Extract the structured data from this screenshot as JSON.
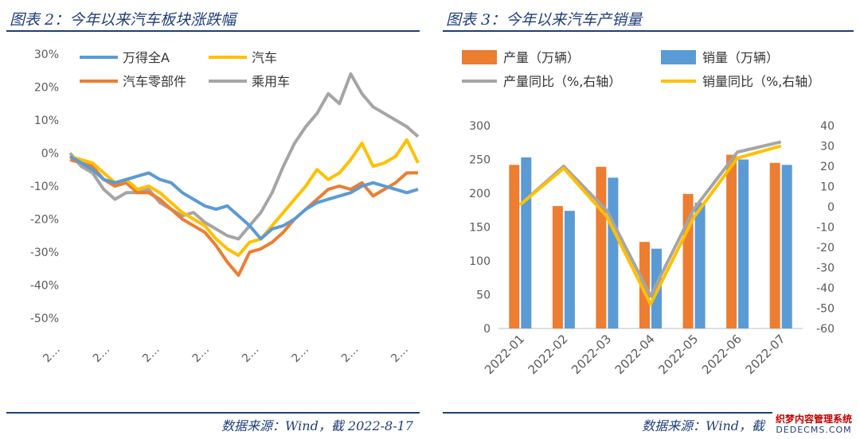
{
  "left": {
    "title": "图表 2：今年以来汽车板块涨跌幅",
    "source": "数据来源：Wind，截 2022-8-17"
  },
  "right": {
    "title": "图表 3：今年以来汽车产销量",
    "source": "数据来源：Wind，截"
  },
  "watermark": {
    "line1": "织梦内容管理系统",
    "line2": "DEDECMS.COM"
  },
  "chart_data": [
    {
      "type": "line",
      "ylim": [
        -50,
        30
      ],
      "yticks": [
        "30%",
        "20%",
        "10%",
        "0%",
        "-10%",
        "-20%",
        "-30%",
        "-40%",
        "-50%"
      ],
      "xticks": [
        "2…",
        "2…",
        "2…",
        "2…",
        "2…",
        "2…",
        "2…",
        "2…"
      ],
      "legend": "top-left",
      "grid": false,
      "series": [
        {
          "name": "万得全A",
          "color": "#5b9bd5",
          "values": [
            -1,
            -3,
            -5,
            -8,
            -9,
            -8,
            -7,
            -6,
            -8,
            -9,
            -12,
            -14,
            -16,
            -17,
            -16,
            -19,
            -22,
            -26,
            -23,
            -22,
            -20,
            -17,
            -15,
            -14,
            -13,
            -12,
            -10,
            -9,
            -10,
            -11,
            -12,
            -11
          ]
        },
        {
          "name": "汽车",
          "color": "#ffc000",
          "values": [
            -1,
            -2,
            -3,
            -6,
            -9,
            -8,
            -11,
            -10,
            -12,
            -15,
            -18,
            -20,
            -22,
            -26,
            -29,
            -31,
            -27,
            -26,
            -22,
            -18,
            -14,
            -10,
            -5,
            -8,
            -6,
            -2,
            3,
            -4,
            -3,
            -1,
            4,
            -3
          ]
        },
        {
          "name": "汽车零部件",
          "color": "#ed7d31",
          "values": [
            -2,
            -3,
            -4,
            -8,
            -10,
            -9,
            -12,
            -12,
            -14,
            -17,
            -20,
            -22,
            -24,
            -28,
            -33,
            -37,
            -30,
            -29,
            -27,
            -24,
            -20,
            -17,
            -14,
            -11,
            -10,
            -11,
            -9,
            -13,
            -11,
            -9,
            -6,
            -6
          ]
        },
        {
          "name": "乘用车",
          "color": "#a5a5a5",
          "values": [
            0,
            -4,
            -6,
            -11,
            -14,
            -12,
            -12,
            -11,
            -15,
            -17,
            -19,
            -18,
            -21,
            -23,
            -25,
            -26,
            -22,
            -18,
            -12,
            -4,
            3,
            8,
            12,
            18,
            15,
            24,
            18,
            14,
            12,
            10,
            8,
            5
          ]
        }
      ]
    },
    {
      "type": "bar",
      "categories": [
        "2022-01",
        "2022-02",
        "2022-03",
        "2022-04",
        "2022-05",
        "2022-06",
        "2022-07"
      ],
      "ylim": [
        0,
        300
      ],
      "yticks": [
        "300",
        "250",
        "200",
        "150",
        "100",
        "50",
        "0"
      ],
      "y2lim": [
        -60,
        40
      ],
      "y2ticks": [
        "40",
        "30",
        "20",
        "10",
        "0",
        "-10",
        "-20",
        "-30",
        "-40",
        "-50",
        "-60"
      ],
      "legend": "top",
      "series": [
        {
          "name": "产量（万辆）",
          "type": "bar",
          "color": "#ed7d31",
          "values": [
            242,
            181,
            239,
            128,
            199,
            257,
            245
          ]
        },
        {
          "name": "销量（万辆）",
          "type": "bar",
          "color": "#5b9bd5",
          "values": [
            253,
            174,
            223,
            118,
            186,
            250,
            242
          ]
        },
        {
          "name": "产量同比（%,右轴）",
          "type": "line",
          "axis": "right",
          "color": "#a5a5a5",
          "values": [
            1,
            20,
            -2,
            -44,
            -1,
            27,
            32
          ]
        },
        {
          "name": "销量同比（%,右轴）",
          "type": "line",
          "axis": "right",
          "color": "#ffc000",
          "values": [
            1,
            19,
            -5,
            -48,
            -5,
            24,
            30
          ]
        }
      ]
    }
  ]
}
